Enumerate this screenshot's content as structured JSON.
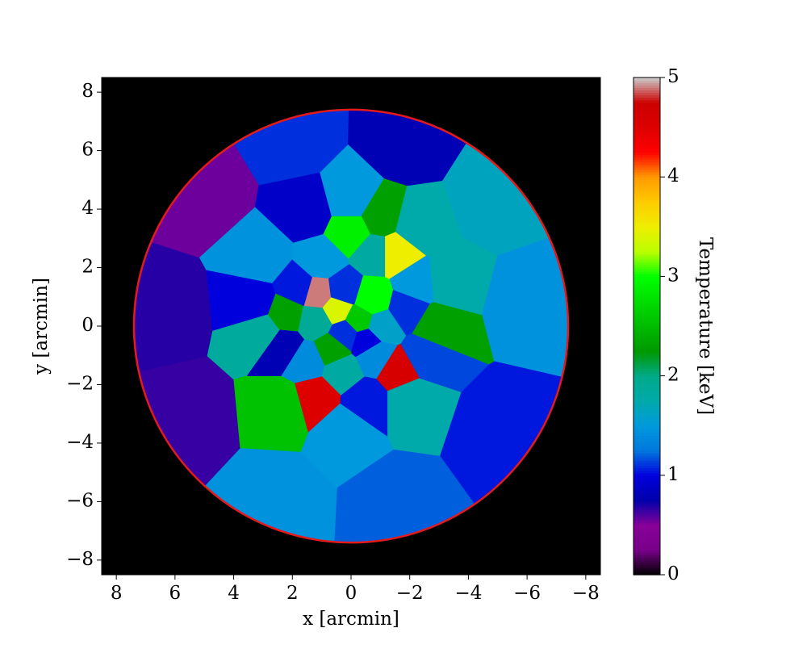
{
  "chart_data": {
    "type": "map",
    "xlabel": "x [arcmin]",
    "ylabel": "y [arcmin]",
    "colorbar_label": "Temperature [keV]",
    "colormap": "nipy_spectral",
    "background": "#000000",
    "xlim": [
      8.5,
      -8.5
    ],
    "ylim": [
      -8.5,
      8.5
    ],
    "xticks": [
      8,
      6,
      4,
      2,
      0,
      {
        "value": -2,
        "label": "−2"
      },
      {
        "value": -4,
        "label": "−4"
      },
      {
        "value": -6,
        "label": "−6"
      },
      {
        "value": -8,
        "label": "−8"
      }
    ],
    "yticks": [
      {
        "value": -8,
        "label": "−8"
      },
      {
        "value": -6,
        "label": "−6"
      },
      {
        "value": -4,
        "label": "−4"
      },
      {
        "value": -2,
        "label": "−2"
      },
      0,
      2,
      4,
      6,
      8
    ],
    "clim": [
      0,
      5
    ],
    "cticks": [
      0,
      1,
      2,
      3,
      4,
      5
    ],
    "region_radius": 7.4,
    "region_color": "#e41a1c",
    "cells": [
      {
        "x": 2,
        "y": 6.3,
        "value": 1.1
      },
      {
        "x": -1.8,
        "y": 6.2,
        "value": 0.8
      },
      {
        "x": -4.8,
        "y": 4.3,
        "value": 1.65
      },
      {
        "x": -6,
        "y": 0.8,
        "value": 1.45
      },
      {
        "x": -5,
        "y": -3.5,
        "value": 1.05
      },
      {
        "x": -1.5,
        "y": -6,
        "value": 1.2
      },
      {
        "x": 2.5,
        "y": -5.8,
        "value": 1.45
      },
      {
        "x": 5.5,
        "y": -3,
        "value": 0.65
      },
      {
        "x": 6.3,
        "y": 0.5,
        "value": 0.68
      },
      {
        "x": 5,
        "y": 4.5,
        "value": 0.55
      },
      {
        "x": 1.5,
        "y": 3.9,
        "value": 0.9
      },
      {
        "x": 0,
        "y": 4.3,
        "value": 1.5
      },
      {
        "x": -1,
        "y": 3.7,
        "value": 2.3
      },
      {
        "x": -2.2,
        "y": 3.4,
        "value": 1.75
      },
      {
        "x": -1.5,
        "y": 2.5,
        "value": 3.5
      },
      {
        "x": 3,
        "y": 2.3,
        "value": 1.45
      },
      {
        "x": 3.3,
        "y": 0.8,
        "value": 1.0
      },
      {
        "x": 3,
        "y": -0.2,
        "value": 1.85
      },
      {
        "x": 2.3,
        "y": -2.7,
        "value": 2.55
      },
      {
        "x": 1.2,
        "y": -2.4,
        "value": 4.5
      },
      {
        "x": 0.2,
        "y": -3.5,
        "value": 1.5
      },
      {
        "x": -0.5,
        "y": -2.5,
        "value": 1.05
      },
      {
        "x": -1.6,
        "y": -1.5,
        "value": 4.6
      },
      {
        "x": -2,
        "y": -2.5,
        "value": 1.75
      },
      {
        "x": -2.5,
        "y": -1,
        "value": 1.15
      },
      {
        "x": -2.9,
        "y": 0,
        "value": 2.3
      },
      {
        "x": -3.3,
        "y": 1.5,
        "value": 1.75
      },
      {
        "x": -2.2,
        "y": 1.4,
        "value": 1.5
      },
      {
        "x": 0,
        "y": 3.2,
        "value": 2.9
      },
      {
        "x": 1.8,
        "y": 1.3,
        "value": 1.05
      },
      {
        "x": 2.2,
        "y": 0.4,
        "value": 2.3
      },
      {
        "x": 2.3,
        "y": -0.7,
        "value": 0.8
      },
      {
        "x": 1,
        "y": 2.2,
        "value": 1.5
      },
      {
        "x": -0.8,
        "y": 2.5,
        "value": 1.8
      },
      {
        "x": -1.9,
        "y": 0.6,
        "value": 1.1
      },
      {
        "x": 1.5,
        "y": -1.2,
        "value": 1.4
      },
      {
        "x": 0.3,
        "y": -1.5,
        "value": 1.8
      },
      {
        "x": -0.8,
        "y": -1,
        "value": 1.4
      },
      {
        "x": 0.5,
        "y": 0.6,
        "value": 3.4
      },
      {
        "x": -0.3,
        "y": 0.2,
        "value": 2.6
      },
      {
        "x": 0.2,
        "y": -0.3,
        "value": 1.1
      },
      {
        "x": 1.2,
        "y": 0.2,
        "value": 1.9
      },
      {
        "x": -1,
        "y": 0,
        "value": 1.6
      },
      {
        "x": 0.6,
        "y": -0.8,
        "value": 2.3
      },
      {
        "x": -0.5,
        "y": -0.5,
        "value": 1.0
      },
      {
        "x": 1.1,
        "y": 1.1,
        "value": 4.9
      },
      {
        "x": -0.7,
        "y": 0.9,
        "value": 3.0
      },
      {
        "x": 0.3,
        "y": 1.2,
        "value": 1.1
      }
    ]
  }
}
